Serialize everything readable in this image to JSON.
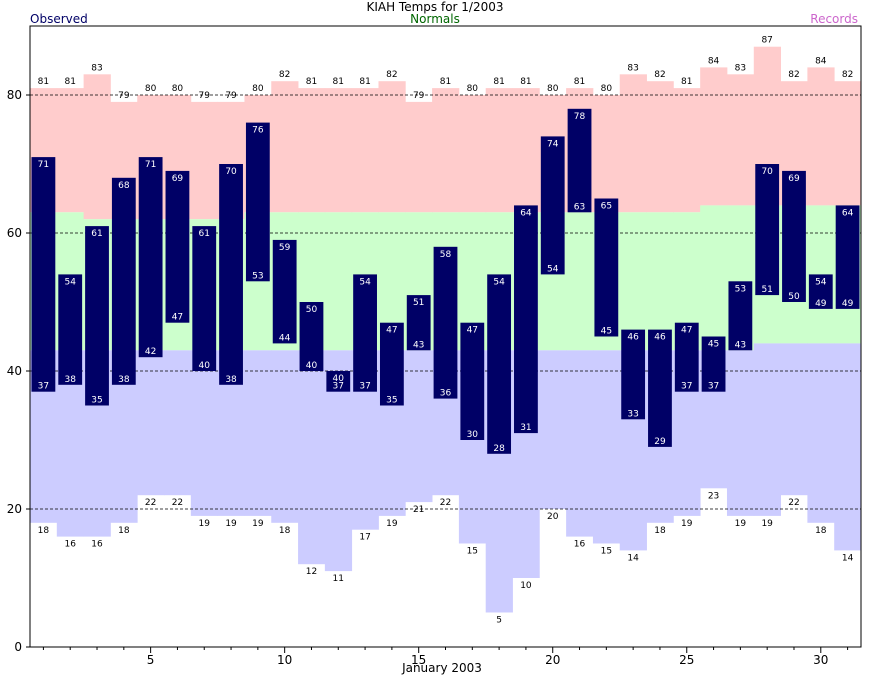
{
  "chart_data": {
    "type": "bar",
    "title": "KIAH Temps for 1/2003",
    "xlabel": "January 2003",
    "ylabel": "",
    "legend": {
      "observed": "Observed",
      "normals": "Normals",
      "records": "Records",
      "placement": "top"
    },
    "ylim": [
      0,
      90
    ],
    "xlim": [
      0.5,
      31.5
    ],
    "y_ticks": [
      0,
      20,
      40,
      60,
      80
    ],
    "x_ticks": [
      5,
      10,
      15,
      20,
      25,
      30
    ],
    "grid": "dashed horizontal at 20, 40, 60, 80",
    "colors": {
      "observed": "#000066",
      "normal_band": "#ccffcc",
      "record_high_band": "#ffcccc",
      "record_low_band": "#ccccff",
      "observed_label": "#000066",
      "normals_label": "#006600",
      "records_label": "#cc66cc"
    },
    "days": [
      1,
      2,
      3,
      4,
      5,
      6,
      7,
      8,
      9,
      10,
      11,
      12,
      13,
      14,
      15,
      16,
      17,
      18,
      19,
      20,
      21,
      22,
      23,
      24,
      25,
      26,
      27,
      28,
      29,
      30,
      31
    ],
    "observed_high": [
      71,
      54,
      61,
      68,
      71,
      69,
      61,
      70,
      76,
      59,
      50,
      40,
      54,
      47,
      51,
      58,
      47,
      54,
      64,
      74,
      78,
      65,
      46,
      46,
      47,
      45,
      53,
      70,
      69,
      54,
      64
    ],
    "observed_low": [
      37,
      38,
      35,
      38,
      42,
      47,
      40,
      38,
      53,
      44,
      40,
      37,
      37,
      35,
      43,
      36,
      30,
      28,
      31,
      54,
      63,
      45,
      33,
      29,
      37,
      37,
      43,
      51,
      50,
      49,
      49
    ],
    "normal_high": [
      63,
      63,
      62,
      62,
      62,
      62,
      62,
      62,
      63,
      63,
      63,
      63,
      63,
      63,
      63,
      63,
      63,
      63,
      63,
      63,
      63,
      63,
      63,
      63,
      63,
      64,
      64,
      64,
      64,
      64,
      64
    ],
    "normal_low": [
      43,
      43,
      43,
      43,
      43,
      43,
      43,
      43,
      43,
      43,
      43,
      43,
      43,
      43,
      43,
      43,
      43,
      43,
      43,
      43,
      43,
      43,
      43,
      43,
      43,
      43,
      43,
      44,
      44,
      44,
      44
    ],
    "record_high": [
      81,
      81,
      83,
      79,
      80,
      80,
      79,
      79,
      80,
      82,
      81,
      81,
      81,
      82,
      79,
      81,
      80,
      81,
      81,
      80,
      81,
      80,
      83,
      82,
      81,
      84,
      83,
      87,
      82,
      84,
      82
    ],
    "record_low": [
      18,
      16,
      16,
      18,
      22,
      22,
      19,
      19,
      19,
      18,
      12,
      11,
      17,
      19,
      21,
      22,
      15,
      5,
      10,
      20,
      16,
      15,
      14,
      18,
      19,
      23,
      19,
      19,
      22,
      18,
      14
    ]
  }
}
